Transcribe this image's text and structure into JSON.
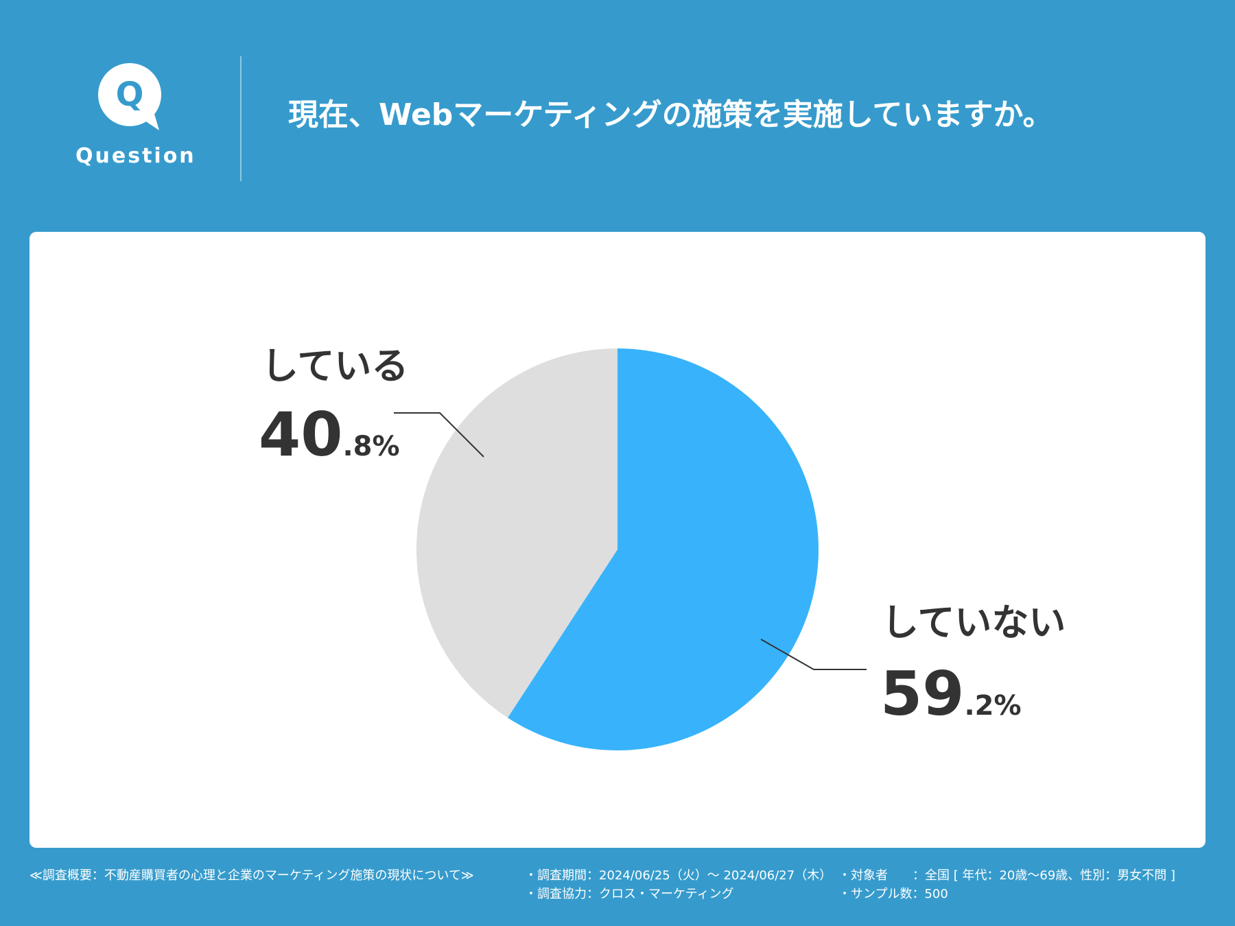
{
  "header": {
    "badge_label": "Question",
    "badge_letter": "Q",
    "title": "現在、Webマーケティングの施策を実施していますか。"
  },
  "colors": {
    "background": "#369bcc",
    "accent": "#38b3fb",
    "neutral": "#dedede",
    "text": "#333333"
  },
  "chart_data": {
    "type": "pie",
    "slices": [
      {
        "label": "していない",
        "value": 59.2,
        "value_int": "59",
        "value_dec": ".2%",
        "color": "#38b3fb"
      },
      {
        "label": "している",
        "value": 40.8,
        "value_int": "40",
        "value_dec": ".8%",
        "color": "#dedede"
      }
    ]
  },
  "footer": {
    "overview": "≪調査概要：不動産購買者の心理と企業のマーケティング施策の現状について≫",
    "period": "・調査期間：2024/06/25（火）〜 2024/06/27（木）",
    "cooperation": "・調査協力：クロス・マーケティング",
    "target": "・対象者　　：全国 [ 年代：20歳〜69歳、性別：男女不問 ]",
    "sample": "・サンプル数：500"
  }
}
